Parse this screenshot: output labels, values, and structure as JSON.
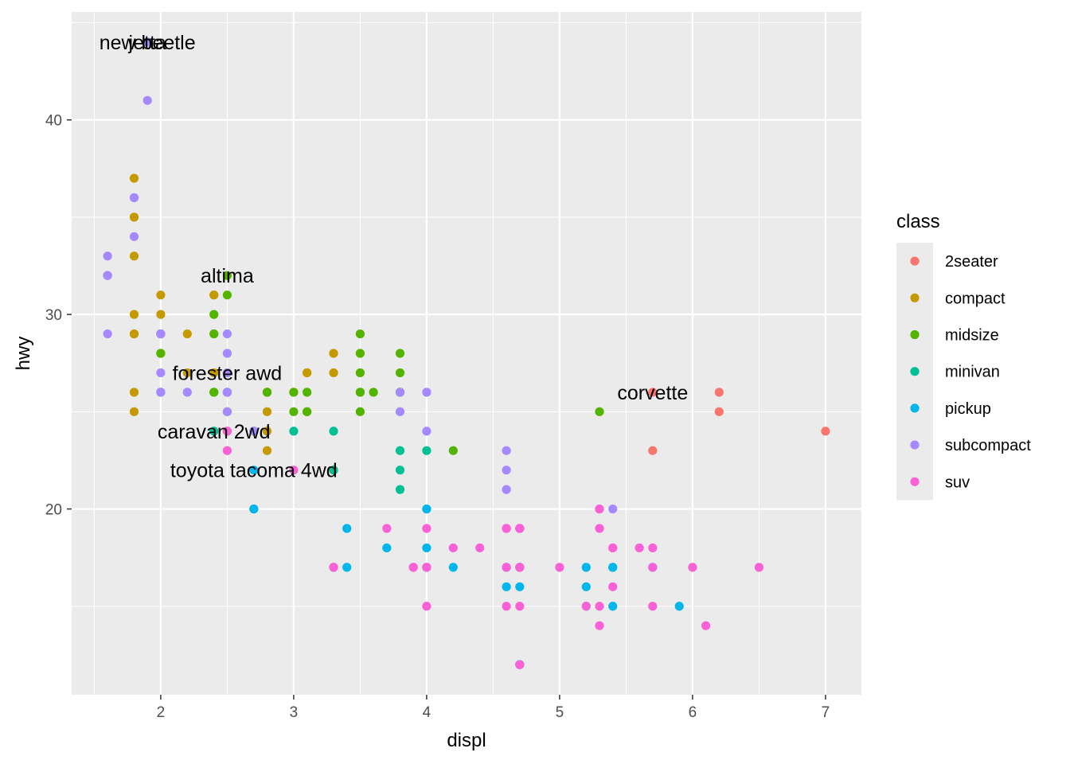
{
  "chart_data": {
    "type": "scatter",
    "title": "",
    "xlabel": "displ",
    "ylabel": "hwy",
    "xlim": [
      1.33,
      7.27
    ],
    "ylim": [
      10.45,
      45.55
    ],
    "x_ticks": [
      2,
      3,
      4,
      5,
      6,
      7
    ],
    "y_ticks": [
      20,
      30,
      40
    ],
    "grid": true,
    "background": "#ebebeb",
    "legend": {
      "title": "class",
      "position": "right",
      "entries": [
        {
          "name": "2seater",
          "color": "#F8766D"
        },
        {
          "name": "compact",
          "color": "#C49A00"
        },
        {
          "name": "midsize",
          "color": "#53B400"
        },
        {
          "name": "minivan",
          "color": "#00C094"
        },
        {
          "name": "pickup",
          "color": "#00B6EB"
        },
        {
          "name": "subcompact",
          "color": "#A58AFF"
        },
        {
          "name": "suv",
          "color": "#FB61D7"
        }
      ]
    },
    "series": [
      {
        "name": "2seater",
        "color": "#F8766D",
        "points": [
          [
            5.7,
            26
          ],
          [
            5.7,
            23
          ],
          [
            6.2,
            26
          ],
          [
            6.2,
            25
          ],
          [
            7.0,
            24
          ]
        ]
      },
      {
        "name": "compact",
        "color": "#C49A00",
        "points": [
          [
            1.8,
            29
          ],
          [
            1.8,
            29
          ],
          [
            2.0,
            31
          ],
          [
            2.0,
            30
          ],
          [
            2.8,
            26
          ],
          [
            2.8,
            26
          ],
          [
            3.1,
            27
          ],
          [
            1.8,
            26
          ],
          [
            1.8,
            25
          ],
          [
            2.0,
            28
          ],
          [
            2.0,
            29
          ],
          [
            2.8,
            25
          ],
          [
            3.1,
            25
          ],
          [
            3.1,
            27
          ],
          [
            1.8,
            37
          ],
          [
            1.8,
            35
          ],
          [
            1.8,
            33
          ],
          [
            2.0,
            29
          ],
          [
            2.2,
            29
          ],
          [
            2.2,
            27
          ],
          [
            2.5,
            27
          ],
          [
            2.5,
            25
          ],
          [
            2.4,
            31
          ],
          [
            2.4,
            31
          ],
          [
            2.4,
            29
          ],
          [
            2.4,
            27
          ],
          [
            2.5,
            24
          ],
          [
            2.8,
            24
          ],
          [
            3.0,
            26
          ],
          [
            3.3,
            28
          ],
          [
            3.3,
            27
          ],
          [
            1.8,
            30
          ],
          [
            2.8,
            23
          ],
          [
            2.0,
            29
          ],
          [
            2.0,
            29
          ]
        ]
      },
      {
        "name": "midsize",
        "color": "#53B400",
        "points": [
          [
            3.1,
            26
          ],
          [
            2.4,
            30
          ],
          [
            2.4,
            29
          ],
          [
            3.0,
            26
          ],
          [
            3.0,
            25
          ],
          [
            3.5,
            28
          ],
          [
            3.5,
            29
          ],
          [
            3.5,
            26
          ],
          [
            3.6,
            26
          ],
          [
            3.8,
            26
          ],
          [
            3.8,
            27
          ],
          [
            3.8,
            28
          ],
          [
            2.5,
            32
          ],
          [
            2.5,
            31
          ],
          [
            3.5,
            27
          ],
          [
            4.2,
            23
          ],
          [
            3.3,
            22
          ],
          [
            2.4,
            26
          ],
          [
            2.4,
            26
          ],
          [
            2.8,
            26
          ],
          [
            3.5,
            25
          ],
          [
            5.3,
            25
          ],
          [
            2.0,
            28
          ],
          [
            2.0,
            29
          ],
          [
            2.0,
            26
          ],
          [
            2.5,
            26
          ],
          [
            2.7,
            24
          ],
          [
            3.1,
            25
          ],
          [
            3.5,
            26
          ],
          [
            3.8,
            26
          ]
        ]
      },
      {
        "name": "minivan",
        "color": "#00C094",
        "points": [
          [
            2.4,
            24
          ],
          [
            3.0,
            24
          ],
          [
            3.3,
            22
          ],
          [
            3.3,
            24
          ],
          [
            3.8,
            22
          ],
          [
            3.8,
            23
          ],
          [
            3.8,
            21
          ],
          [
            4.0,
            23
          ],
          [
            3.3,
            17
          ]
        ]
      },
      {
        "name": "pickup",
        "color": "#00B6EB",
        "points": [
          [
            3.7,
            18
          ],
          [
            4.7,
            17
          ],
          [
            4.7,
            16
          ],
          [
            4.7,
            19
          ],
          [
            4.7,
            17
          ],
          [
            5.2,
            17
          ],
          [
            5.7,
            17
          ],
          [
            5.2,
            16
          ],
          [
            5.9,
            15
          ],
          [
            4.7,
            12
          ],
          [
            4.7,
            12
          ],
          [
            4.0,
            20
          ],
          [
            4.0,
            18
          ],
          [
            4.6,
            16
          ],
          [
            5.4,
            15
          ],
          [
            5.4,
            17
          ],
          [
            2.7,
            20
          ],
          [
            2.7,
            22
          ],
          [
            2.7,
            20
          ],
          [
            3.4,
            19
          ],
          [
            3.4,
            17
          ],
          [
            4.0,
            17
          ],
          [
            4.0,
            20
          ],
          [
            4.2,
            17
          ],
          [
            4.6,
            17
          ],
          [
            5.2,
            15
          ],
          [
            5.4,
            17
          ]
        ]
      },
      {
        "name": "subcompact",
        "color": "#A58AFF",
        "points": [
          [
            3.8,
            26
          ],
          [
            3.8,
            25
          ],
          [
            4.0,
            26
          ],
          [
            4.0,
            24
          ],
          [
            4.6,
            21
          ],
          [
            4.6,
            22
          ],
          [
            4.6,
            23
          ],
          [
            5.4,
            20
          ],
          [
            1.6,
            33
          ],
          [
            1.6,
            32
          ],
          [
            1.6,
            32
          ],
          [
            1.6,
            29
          ],
          [
            1.6,
            32
          ],
          [
            1.8,
            34
          ],
          [
            1.8,
            36
          ],
          [
            1.8,
            36
          ],
          [
            2.0,
            29
          ],
          [
            2.0,
            26
          ],
          [
            2.0,
            27
          ],
          [
            1.9,
            44
          ],
          [
            2.0,
            29
          ],
          [
            2.0,
            26
          ],
          [
            2.5,
            28
          ],
          [
            2.5,
            29
          ],
          [
            2.5,
            26
          ],
          [
            2.5,
            27
          ],
          [
            2.2,
            26
          ],
          [
            2.5,
            25
          ],
          [
            2.5,
            26
          ],
          [
            2.7,
            24
          ],
          [
            1.9,
            41
          ],
          [
            1.9,
            44
          ]
        ]
      },
      {
        "name": "suv",
        "color": "#FB61D7",
        "points": [
          [
            5.3,
            20
          ],
          [
            5.3,
            15
          ],
          [
            5.3,
            20
          ],
          [
            5.7,
            17
          ],
          [
            6.0,
            17
          ],
          [
            5.7,
            18
          ],
          [
            5.3,
            14
          ],
          [
            6.5,
            17
          ],
          [
            4.7,
            19
          ],
          [
            4.7,
            19
          ],
          [
            4.7,
            15
          ],
          [
            4.7,
            17
          ],
          [
            5.2,
            15
          ],
          [
            4.0,
            19
          ],
          [
            4.0,
            17
          ],
          [
            4.0,
            15
          ],
          [
            4.6,
            17
          ],
          [
            5.0,
            17
          ],
          [
            4.2,
            18
          ],
          [
            4.4,
            18
          ],
          [
            4.6,
            15
          ],
          [
            5.4,
            18
          ],
          [
            4.7,
            17
          ],
          [
            5.4,
            16
          ],
          [
            4.6,
            19
          ],
          [
            5.4,
            18
          ],
          [
            3.9,
            17
          ],
          [
            4.7,
            12
          ],
          [
            5.7,
            15
          ],
          [
            6.1,
            14
          ],
          [
            5.3,
            19
          ],
          [
            5.6,
            18
          ],
          [
            3.7,
            19
          ],
          [
            5.3,
            20
          ],
          [
            2.5,
            23
          ],
          [
            2.5,
            24
          ],
          [
            3.0,
            22
          ],
          [
            3.3,
            17
          ],
          [
            3.9,
            17
          ],
          [
            4.6,
            19
          ],
          [
            4.7,
            19
          ],
          [
            4.0,
            17
          ]
        ]
      }
    ],
    "annotations": [
      {
        "label": "new beetle",
        "x": 1.9,
        "y": 44
      },
      {
        "label": "jetta",
        "x": 1.9,
        "y": 44
      },
      {
        "label": "altima",
        "x": 2.5,
        "y": 32
      },
      {
        "label": "forester awd",
        "x": 2.5,
        "y": 27
      },
      {
        "label": "caravan 2wd",
        "x": 2.4,
        "y": 24
      },
      {
        "label": "toyota tacoma 4wd",
        "x": 2.7,
        "y": 22
      },
      {
        "label": "corvette",
        "x": 5.7,
        "y": 26
      }
    ]
  }
}
